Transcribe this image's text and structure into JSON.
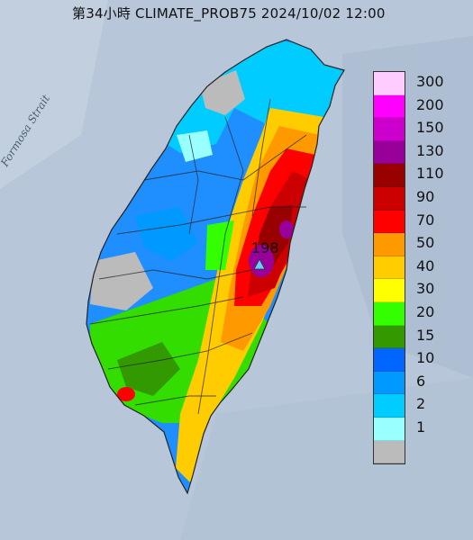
{
  "title": "第34小時  CLIMATE_PROB75 2024/10/02 12:00",
  "strait_label": "Formosa Strait",
  "max_marker": {
    "value": "198",
    "icon": "triangle-icon",
    "color": "#66ccff"
  },
  "legend": [
    {
      "label": "300",
      "color": "#ffccff"
    },
    {
      "label": "200",
      "color": "#ff00ff"
    },
    {
      "label": "150",
      "color": "#cc00cc"
    },
    {
      "label": "130",
      "color": "#990099"
    },
    {
      "label": "110",
      "color": "#990000"
    },
    {
      "label": "90",
      "color": "#cc0000"
    },
    {
      "label": "70",
      "color": "#ff0000"
    },
    {
      "label": "50",
      "color": "#ff9900"
    },
    {
      "label": "40",
      "color": "#ffcc00"
    },
    {
      "label": "30",
      "color": "#ffff00"
    },
    {
      "label": "20",
      "color": "#33ff00"
    },
    {
      "label": "15",
      "color": "#339900"
    },
    {
      "label": "10",
      "color": "#0066ff"
    },
    {
      "label": "6",
      "color": "#0099ff"
    },
    {
      "label": "2",
      "color": "#00ccff"
    },
    {
      "label": "1",
      "color": "#99ffff"
    },
    {
      "label": "",
      "color": "#bbbbbb"
    }
  ]
}
